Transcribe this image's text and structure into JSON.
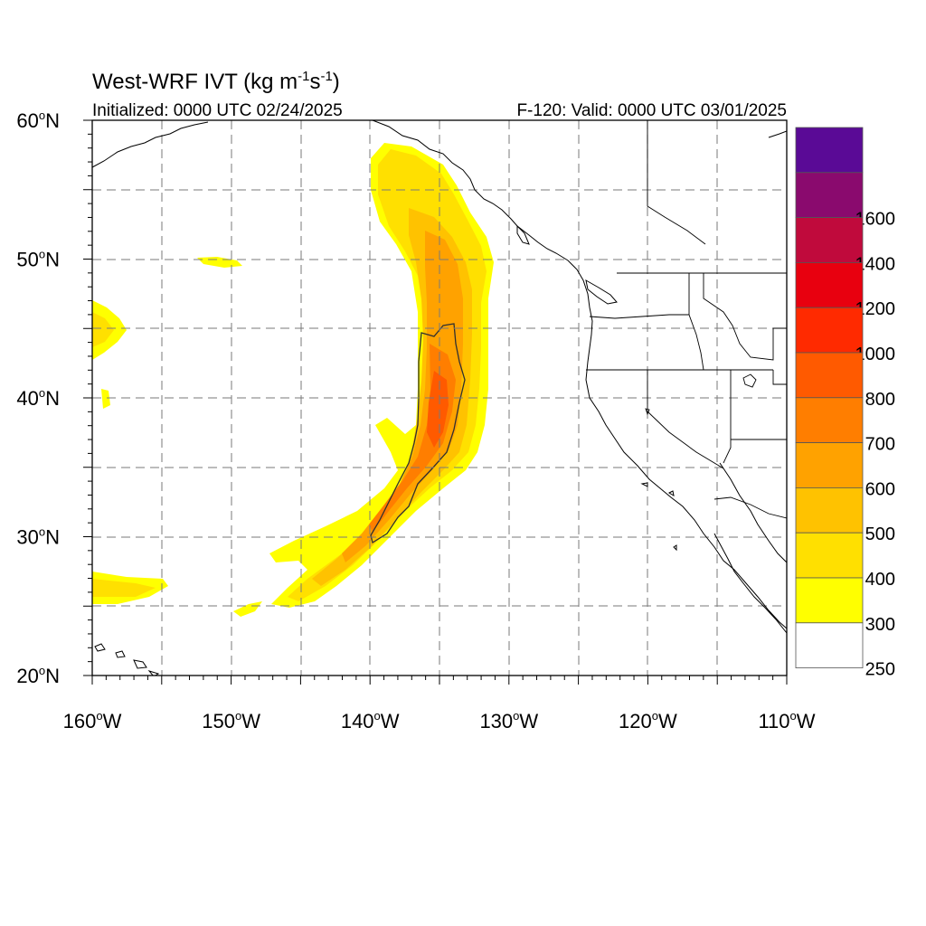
{
  "title": {
    "main": "West-WRF IVT (kg m",
    "sup1": "-1",
    "mid": "s",
    "sup2": "-1",
    "close": ")"
  },
  "subtitle_left": "Initialized: 0000 UTC 02/24/2025",
  "subtitle_right": "F-120: Valid: 0000 UTC 03/01/2025",
  "map": {
    "lon_range": [
      -160,
      -110
    ],
    "lat_range": [
      20,
      60
    ],
    "grid": "dashed",
    "lat_labels": [
      {
        "deg": "60",
        "unit": "N",
        "lat": 60
      },
      {
        "deg": "50",
        "unit": "N",
        "lat": 50
      },
      {
        "deg": "40",
        "unit": "N",
        "lat": 40
      },
      {
        "deg": "30",
        "unit": "N",
        "lat": 30
      },
      {
        "deg": "20",
        "unit": "N",
        "lat": 20
      }
    ],
    "lon_labels": [
      {
        "deg": "160",
        "unit": "W",
        "lon": -160
      },
      {
        "deg": "150",
        "unit": "W",
        "lon": -150
      },
      {
        "deg": "140",
        "unit": "W",
        "lon": -140
      },
      {
        "deg": "130",
        "unit": "W",
        "lon": -130
      },
      {
        "deg": "120",
        "unit": "W",
        "lon": -120
      },
      {
        "deg": "110",
        "unit": "W",
        "lon": -110
      }
    ]
  },
  "colorbar": {
    "bins": [
      {
        "color": "#5a0a96",
        "label": ""
      },
      {
        "color": "#8a0a6e",
        "label": "1600"
      },
      {
        "color": "#c00a3c",
        "label": "1400"
      },
      {
        "color": "#e8000f",
        "label": "1200"
      },
      {
        "color": "#ff2a00",
        "label": "1000"
      },
      {
        "color": "#ff5a00",
        "label": "800"
      },
      {
        "color": "#ff7e00",
        "label": "700"
      },
      {
        "color": "#ffa200",
        "label": "600"
      },
      {
        "color": "#ffc200",
        "label": "500"
      },
      {
        "color": "#ffe000",
        "label": "400"
      },
      {
        "color": "#ffff00",
        "label": "300"
      },
      {
        "color": "#ffffff",
        "label": "250"
      }
    ]
  }
}
